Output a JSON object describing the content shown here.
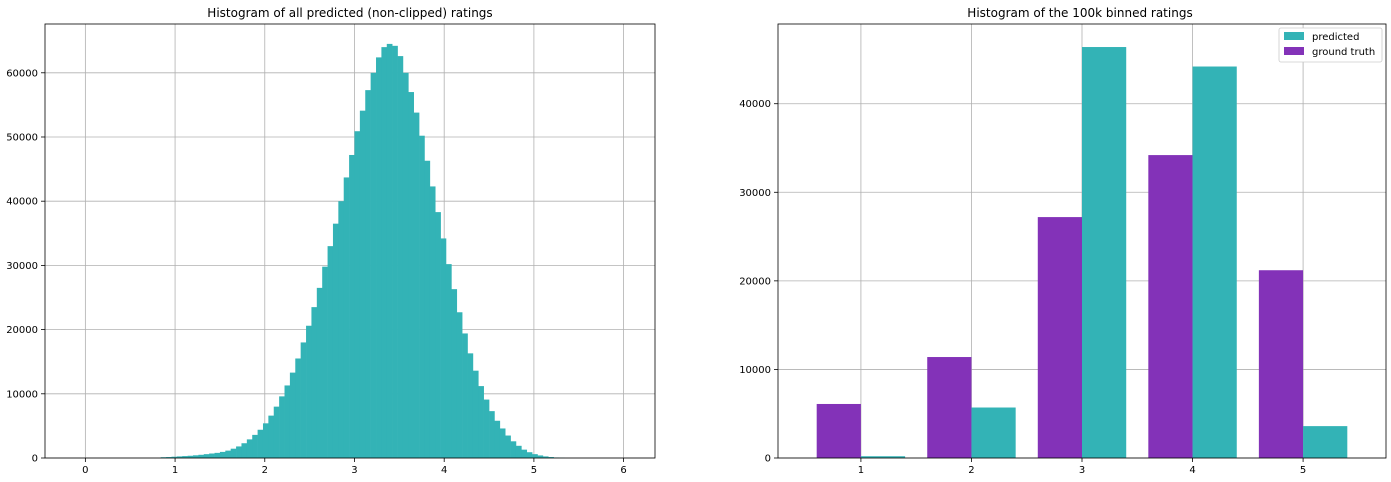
{
  "chart_data": [
    {
      "type": "bar",
      "title": "Histogram of all predicted (non-clipped) ratings",
      "xlabel": "",
      "ylabel": "",
      "xlim": [
        -0.45,
        6.35
      ],
      "ylim": [
        0,
        67600
      ],
      "bin_start": 0.0,
      "bin_width": 0.06,
      "bar_color": "#33b3b6",
      "grid": true,
      "x_ticks": [
        0,
        1,
        2,
        3,
        4,
        5,
        6
      ],
      "y_ticks": [
        0,
        10000,
        20000,
        30000,
        40000,
        50000,
        60000
      ],
      "values": [
        0,
        0,
        0,
        0,
        0,
        0,
        0,
        0,
        0,
        0,
        0,
        0,
        0,
        0,
        120,
        150,
        200,
        250,
        300,
        350,
        420,
        500,
        600,
        700,
        800,
        950,
        1150,
        1450,
        1800,
        2300,
        2900,
        3600,
        4400,
        5400,
        6600,
        8000,
        9600,
        11300,
        13300,
        15500,
        18000,
        20600,
        23500,
        26500,
        29800,
        33000,
        36500,
        40000,
        43700,
        47200,
        50900,
        54100,
        57300,
        60000,
        62400,
        64000,
        64500,
        64200,
        62600,
        60000,
        57000,
        53800,
        50200,
        46300,
        42300,
        38300,
        34200,
        30200,
        26300,
        22700,
        19400,
        16300,
        13600,
        11200,
        9100,
        7300,
        5800,
        4600,
        3500,
        2600,
        1900,
        1300,
        900,
        600,
        400,
        250,
        150,
        80,
        40,
        0,
        0,
        0,
        0,
        0,
        0,
        0,
        0,
        0,
        0,
        0,
        0
      ]
    },
    {
      "type": "bar",
      "title": "Histogram of the 100k binned ratings",
      "xlabel": "",
      "ylabel": "",
      "categories": [
        "1",
        "2",
        "3",
        "4",
        "5"
      ],
      "xlim": [
        0.25,
        5.75
      ],
      "ylim": [
        0,
        49000
      ],
      "grid": true,
      "y_ticks": [
        0,
        10000,
        20000,
        30000,
        40000
      ],
      "legend_position": "top-right",
      "series": [
        {
          "name": "predicted",
          "color": "#33b3b6",
          "values": [
            200,
            5700,
            46400,
            44200,
            3600
          ]
        },
        {
          "name": "ground truth",
          "color": "#8332b8",
          "values": [
            6100,
            11400,
            27200,
            34200,
            21200
          ]
        }
      ]
    }
  ]
}
